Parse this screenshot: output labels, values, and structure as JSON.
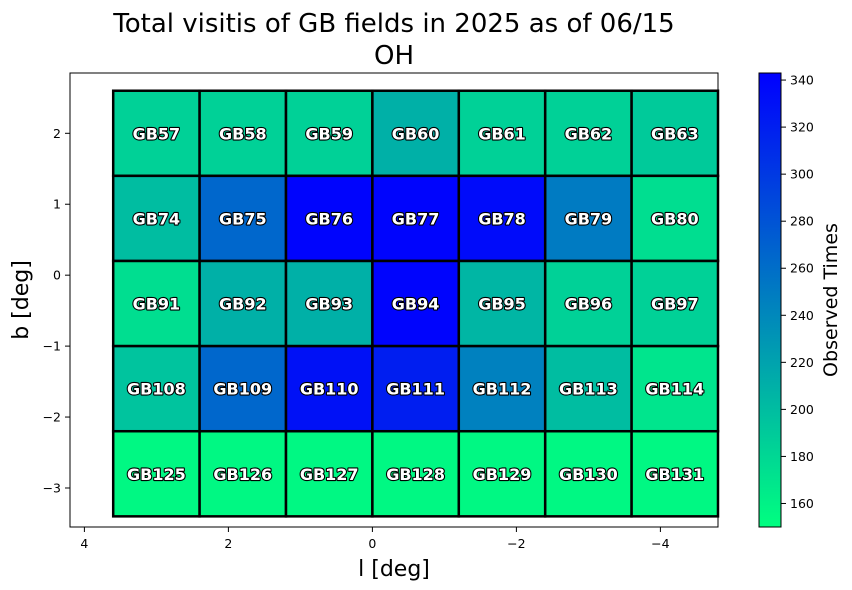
{
  "chart_data": {
    "type": "heatmap",
    "title": "Total visitis of GB fields in 2025 as of 06/15",
    "subtitle": "OH",
    "xlabel": "l [deg]",
    "ylabel": "b [deg]",
    "xlim": [
      4.2,
      -4.8
    ],
    "ylim": [
      -3.55,
      2.85
    ],
    "x_ticks": [
      4,
      2,
      0,
      -2,
      -4
    ],
    "x_tick_labels": [
      "4",
      "2",
      "0",
      "−2",
      "−4"
    ],
    "y_ticks": [
      2,
      1,
      0,
      -1,
      -2,
      -3
    ],
    "y_tick_labels": [
      "2",
      "1",
      "0",
      "−1",
      "−2",
      "−3"
    ],
    "grid": false,
    "tile_l_centers": [
      3.0,
      1.8,
      0.6,
      -0.6,
      -1.8,
      -3.0,
      -4.2
    ],
    "tile_b_centers": [
      2.0,
      0.8,
      -0.4,
      -1.6,
      -2.8
    ],
    "tile_size_deg": 1.2,
    "fields": [
      [
        "GB57",
        "GB58",
        "GB59",
        "GB60",
        "GB61",
        "GB62",
        "GB63"
      ],
      [
        "GB74",
        "GB75",
        "GB76",
        "GB77",
        "GB78",
        "GB79",
        "GB80"
      ],
      [
        "GB91",
        "GB92",
        "GB93",
        "GB94",
        "GB95",
        "GB96",
        "GB97"
      ],
      [
        "GB108",
        "GB109",
        "GB110",
        "GB111",
        "GB112",
        "GB113",
        "GB114"
      ],
      [
        "GB125",
        "GB126",
        "GB127",
        "GB128",
        "GB129",
        "GB130",
        "GB131"
      ]
    ],
    "values": [
      [
        185,
        185,
        185,
        210,
        185,
        185,
        190
      ],
      [
        200,
        265,
        340,
        340,
        335,
        250,
        175
      ],
      [
        175,
        210,
        210,
        340,
        205,
        185,
        185
      ],
      [
        195,
        265,
        330,
        320,
        245,
        200,
        170
      ],
      [
        155,
        155,
        155,
        155,
        155,
        155,
        155
      ]
    ],
    "colorbar": {
      "label": "Observed Times",
      "colormap": "winter_r",
      "min": 150,
      "max": 343,
      "ticks": [
        160,
        180,
        200,
        220,
        240,
        260,
        280,
        300,
        320,
        340
      ],
      "tick_labels": [
        "160",
        "180",
        "200",
        "220",
        "240",
        "260",
        "280",
        "300",
        "320",
        "340"
      ],
      "color_low": "#00ff80",
      "color_high": "#0000ff"
    }
  }
}
